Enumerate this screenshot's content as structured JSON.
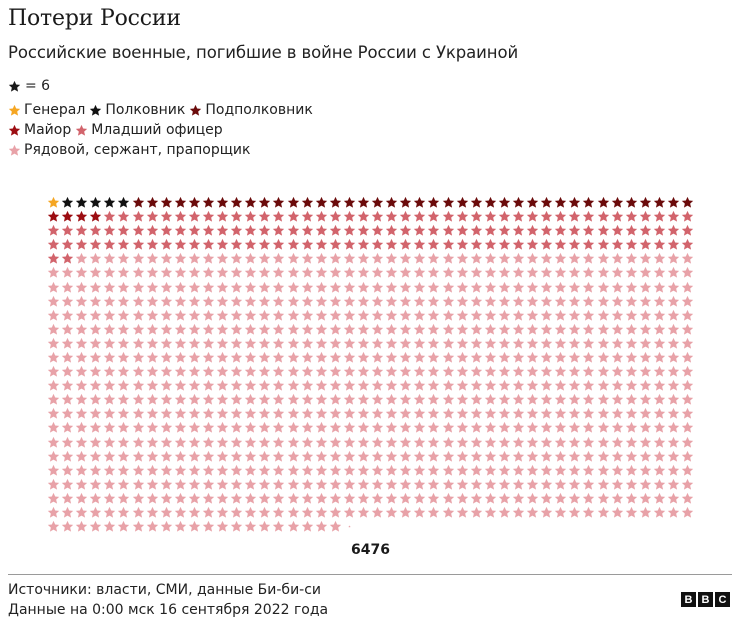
{
  "header": {
    "title": "Потери России",
    "subtitle": "Российские военные, погибшие в войне России с Украиной"
  },
  "unit_legend": {
    "icon": "star-icon",
    "text": "= 6",
    "color": "#1a1a1a"
  },
  "legend": [
    {
      "key": "general",
      "label": "Генерал",
      "color": "#f5a623"
    },
    {
      "key": "colonel",
      "label": "Полковник",
      "color": "#111111"
    },
    {
      "key": "lt_colonel",
      "label": "Подполковник",
      "color": "#6b0b0b"
    },
    {
      "key": "major",
      "label": "Майор",
      "color": "#9c0d12"
    },
    {
      "key": "junior_officer",
      "label": "Младший офицер",
      "color": "#d2646c"
    },
    {
      "key": "enlisted",
      "label": "Рядовой, сержант, прапорщик",
      "color": "#e8a2a8"
    }
  ],
  "total_label": "6476",
  "footer": {
    "source": "Источники: власти, СМИ, данные Би-би-си",
    "date": "Данные на 0:00 мск 16 сентября 2022 года",
    "logo": [
      "B",
      "B",
      "C"
    ]
  },
  "chart_data": {
    "type": "pictogram",
    "title": "Потери России",
    "subtitle": "Российские военные, погибшие в войне России с Украиной",
    "unit_value": 6,
    "unit_label": "★ = 6",
    "columns": 46,
    "rows": 24,
    "total": 6476,
    "categories": [
      "Генерал",
      "Полковник",
      "Подполковник",
      "Майор",
      "Младший офицер",
      "Рядовой, сержант, прапорщик"
    ],
    "stars": [
      1,
      5,
      40,
      4,
      136,
      893.33
    ],
    "values_approx": [
      6,
      30,
      240,
      24,
      816,
      5360
    ],
    "colors": [
      "#f5a623",
      "#111111",
      "#6b0b0b",
      "#9c0d12",
      "#d2646c",
      "#e8a2a8"
    ],
    "annotations": [
      "6476"
    ],
    "source": "Источники: власти, СМИ, данные Би-би-си",
    "date_note": "Данные на 0:00 мск 16 сентября 2022 года"
  }
}
